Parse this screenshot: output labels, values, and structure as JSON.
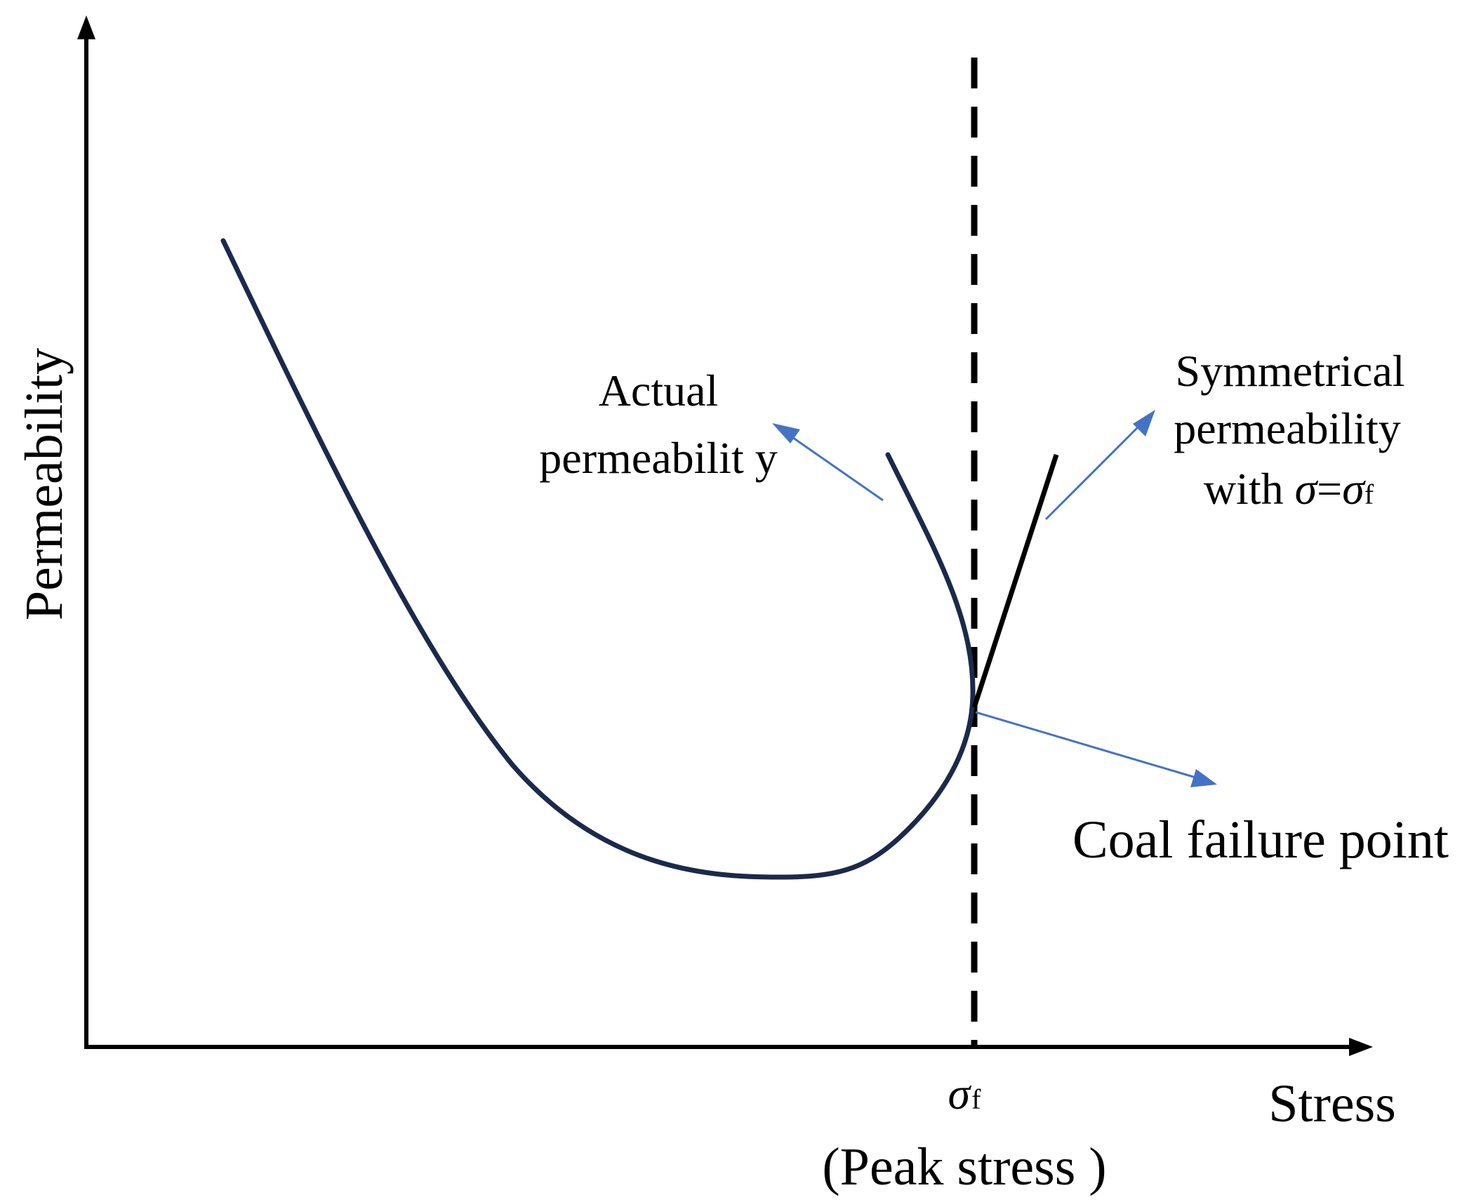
{
  "axes": {
    "x_label": "Stress",
    "y_label": "Permeability"
  },
  "peak": {
    "symbol": "σ",
    "subscript": "f",
    "caption": "(Peak stress )"
  },
  "annotations": {
    "actual": {
      "line1": "Actual",
      "line2": "permeabilit y"
    },
    "symmetrical": {
      "line1": "Symmetrical",
      "line2": "permeability",
      "line3_prefix": "with ",
      "line3_sigma": "σ",
      "line3_eq": "=",
      "line3_sigma2": "σ",
      "line3_sub": "f"
    },
    "failure": {
      "text": "Coal failure point"
    }
  },
  "colors": {
    "axis": "#000000",
    "curve": "#1b2a4a",
    "symmetric_line": "#000000",
    "arrow": "#4472c4",
    "dashed": "#000000"
  }
}
